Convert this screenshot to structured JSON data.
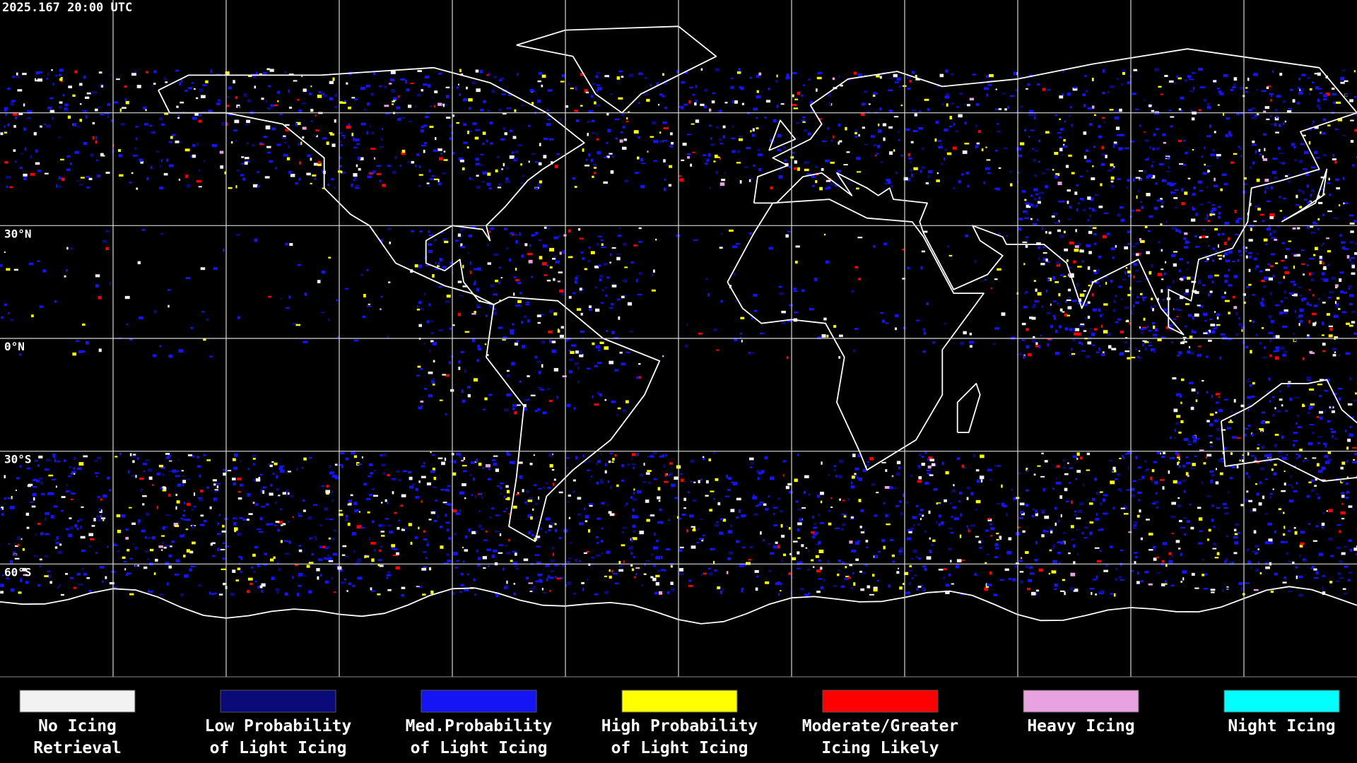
{
  "header": {
    "timestamp": "2025.167 20:00 UTC"
  },
  "map": {
    "latitude_labels": [
      "30°N",
      "0°N",
      "30°S",
      "60°S"
    ]
  },
  "legend": {
    "items": [
      {
        "label_lines": [
          "No Icing",
          "Retrieval"
        ],
        "color": "#f2f2f2"
      },
      {
        "label_lines": [
          "Low Probability",
          "of Light Icing"
        ],
        "color": "#0a0a78"
      },
      {
        "label_lines": [
          "Med.Probability",
          "of Light Icing"
        ],
        "color": "#1414f5"
      },
      {
        "label_lines": [
          "High Probability",
          "of Light Icing"
        ],
        "color": "#ffff00"
      },
      {
        "label_lines": [
          "Moderate/Greater",
          "Icing Likely"
        ],
        "color": "#ff0000"
      },
      {
        "label_lines": [
          "Heavy Icing"
        ],
        "color": "#e8a2e0"
      },
      {
        "label_lines": [
          "Night Icing"
        ],
        "color": "#00ffff"
      }
    ]
  }
}
